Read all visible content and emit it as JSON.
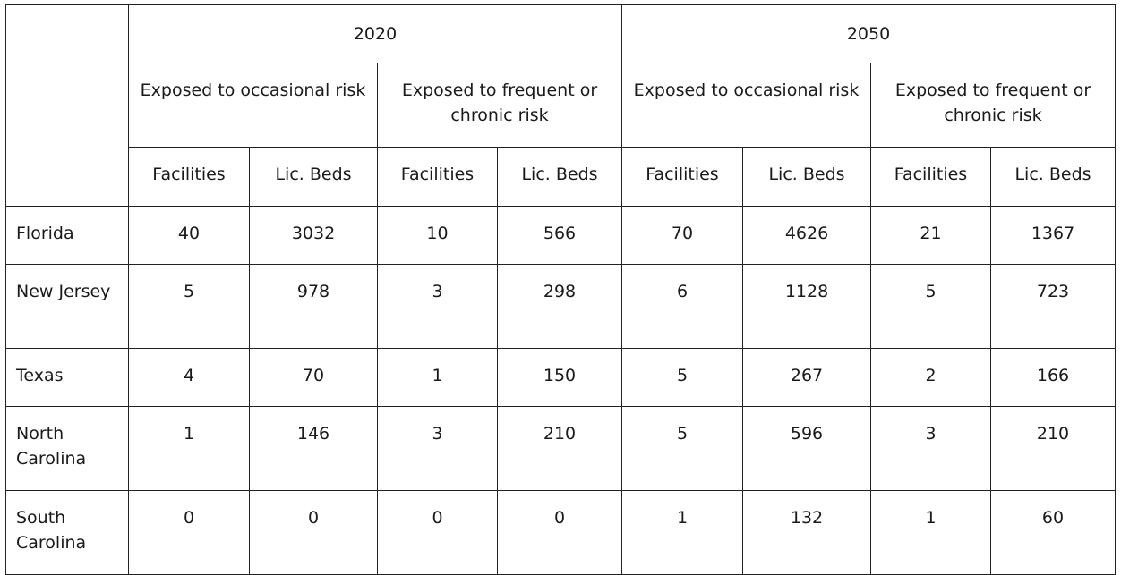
{
  "years": [
    "2020",
    "2050"
  ],
  "risk_groups": [
    "Exposed to occasional risk",
    "Exposed to frequent or chronic risk",
    "Exposed to occasional risk",
    "Exposed to frequent or chronic risk"
  ],
  "sub_headers": [
    "Facilities",
    "Lic. Beds",
    "Facilities",
    "Lic. Beds",
    "Facilities",
    "Lic. Beds",
    "Facilities",
    "Lic. Beds"
  ],
  "rows": [
    {
      "state": "Florida",
      "values": [
        "40",
        "3032",
        "10",
        "566",
        "70",
        "4626",
        "21",
        "1367"
      ]
    },
    {
      "state": "New Jersey",
      "values": [
        "5",
        "978",
        "3",
        "298",
        "6",
        "1128",
        "5",
        "723"
      ]
    },
    {
      "state": "Texas",
      "values": [
        "4",
        "70",
        "1",
        "150",
        "5",
        "267",
        "2",
        "166"
      ]
    },
    {
      "state": "North Carolina",
      "values": [
        "1",
        "146",
        "3",
        "210",
        "5",
        "596",
        "3",
        "210"
      ]
    },
    {
      "state": "South Carolina",
      "values": [
        "0",
        "0",
        "0",
        "0",
        "1",
        "132",
        "1",
        "60"
      ]
    }
  ]
}
